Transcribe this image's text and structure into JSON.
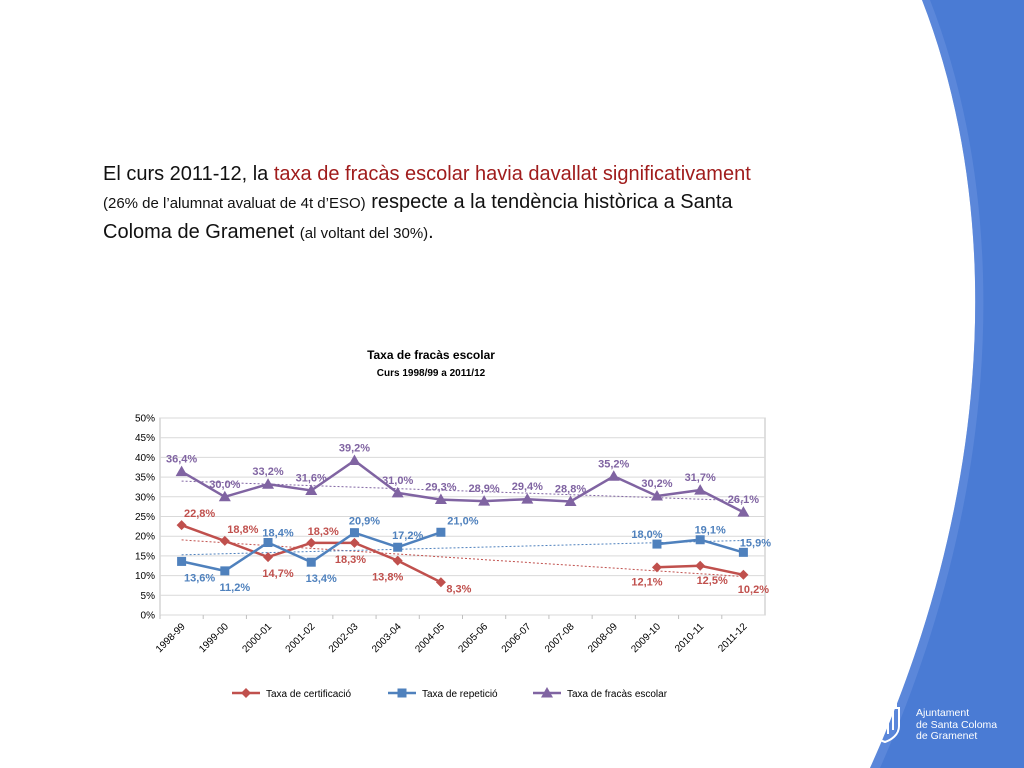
{
  "slide": {
    "intro": {
      "p1": "El curs 2011-12, la ",
      "p2": "taxa de fracàs escolar havia davallat significativament",
      "p3": "(26% de l’alumnat avaluat de 4t d’ESO)",
      "p4": " respecte a la tendència històrica a Santa Coloma de Gramenet ",
      "p5": "(al voltant del 30%)",
      "p6": "."
    },
    "colors": {
      "side_blue": "#4a7bd4",
      "accent_red": "#a01c1c"
    },
    "logo": {
      "icon": "coat-of-arms-icon",
      "line1": "Ajuntament",
      "line2": "de Santa Coloma",
      "line3": "de Gramenet"
    }
  },
  "chart_data": {
    "type": "line",
    "title": "Taxa de fracàs escolar",
    "subtitle": "Curs 1998/99 a 2011/12",
    "categories": [
      "1998-99",
      "1999-00",
      "2000-01",
      "2001-02",
      "2002-03",
      "2003-04",
      "2004-05",
      "2005-06",
      "2006-07",
      "2007-08",
      "2008-09",
      "2009-10",
      "2010-11",
      "2011-12"
    ],
    "ylim": [
      0,
      50
    ],
    "yticks": [
      "0%",
      "5%",
      "10%",
      "15%",
      "20%",
      "25%",
      "30%",
      "35%",
      "40%",
      "45%",
      "50%"
    ],
    "grid": true,
    "legend_position": "bottom",
    "trendlines": true,
    "series": [
      {
        "name": "Taxa de certificació",
        "color": "#c0504d",
        "marker": "diamond",
        "values": [
          22.8,
          18.8,
          14.7,
          18.3,
          18.3,
          13.8,
          8.3,
          null,
          null,
          null,
          null,
          12.1,
          12.5,
          10.2
        ],
        "labels": [
          "22,8%",
          "18,8%",
          "14,7%",
          "18,3%",
          "18,3%",
          "13,8%",
          "8,3%",
          "",
          "",
          "",
          "",
          "12,1%",
          "12,5%",
          "10,2%"
        ]
      },
      {
        "name": "Taxa de repetició",
        "color": "#4f81bd",
        "marker": "square",
        "values": [
          13.6,
          11.2,
          18.4,
          13.4,
          20.9,
          17.2,
          21.0,
          null,
          null,
          null,
          null,
          18.0,
          19.1,
          15.9
        ],
        "labels": [
          "13,6%",
          "11,2%",
          "18,4%",
          "13,4%",
          "20,9%",
          "17,2%",
          "21,0%",
          "",
          "",
          "",
          "",
          "18,0%",
          "19,1%",
          "15,9%"
        ]
      },
      {
        "name": "Taxa de fracàs escolar",
        "color": "#8064a2",
        "marker": "triangle",
        "values": [
          36.4,
          30.0,
          33.2,
          31.6,
          39.2,
          31.0,
          29.3,
          28.9,
          29.4,
          28.8,
          35.2,
          30.2,
          31.7,
          26.1
        ],
        "labels": [
          "36,4%",
          "30,0%",
          "33,2%",
          "31,6%",
          "39,2%",
          "31,0%",
          "29,3%",
          "28,9%",
          "29,4%",
          "28,8%",
          "35,2%",
          "30,2%",
          "31,7%",
          "26,1%"
        ]
      }
    ]
  }
}
